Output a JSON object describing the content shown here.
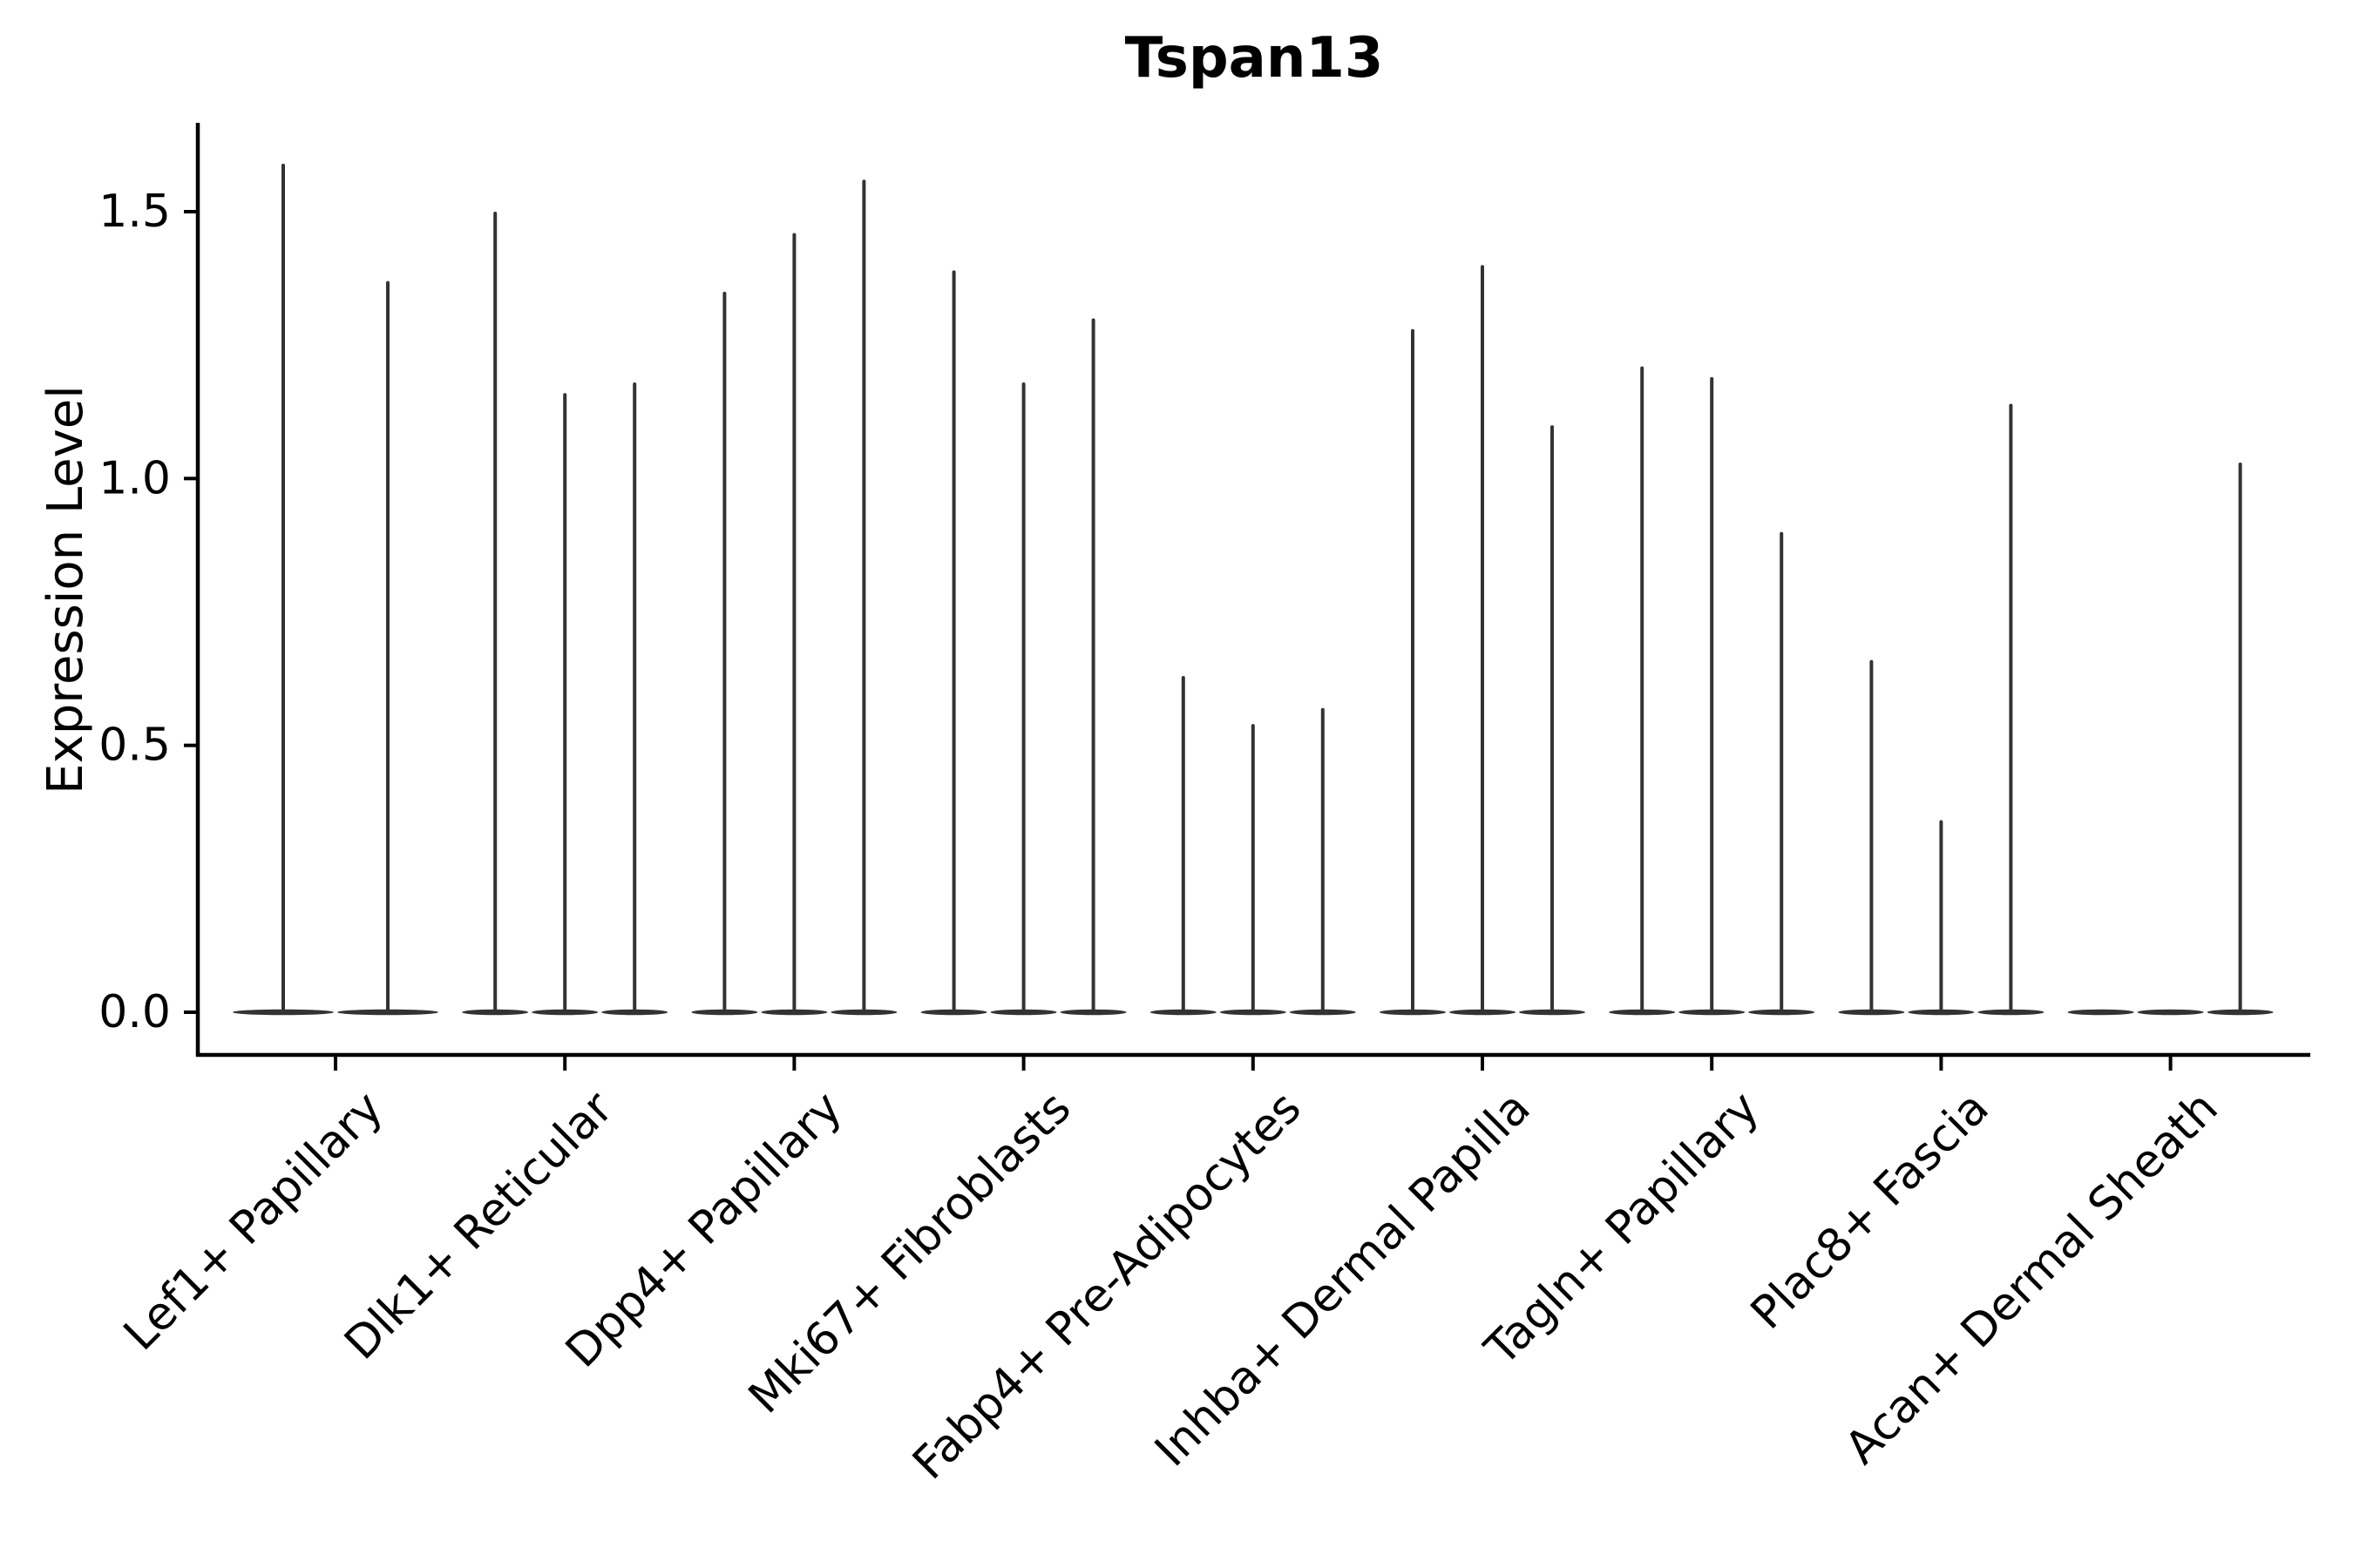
{
  "chart_data": {
    "type": "violin",
    "title": "Tspan13",
    "ylabel": "Expression Level",
    "xlabel": "",
    "ytick_labels": [
      "0.0",
      "0.5",
      "1.0",
      "1.5"
    ],
    "ytick_values": [
      0.0,
      0.5,
      1.0,
      1.5
    ],
    "ylim": [
      -0.08,
      1.67
    ],
    "grid": false,
    "legend": "none",
    "violin_style": "density collapsed at zero with a thin spike rising to the maximum expression value",
    "categories": [
      "Lef1+ Papillary",
      "Dlk1+ Reticular",
      "Dpp4+ Papillary",
      "Mki67+ Fibroblasts",
      "Fabp4+ Pre-Adipocytes",
      "Inhba+ Dermal Papilla",
      "Tagln+ Papillary",
      "Plac8+ Fascia",
      "Acan+ Dermal Sheath"
    ],
    "series": [
      {
        "category": "Lef1+ Papillary",
        "violin_max_values": [
          1.59,
          1.37
        ]
      },
      {
        "category": "Dlk1+ Reticular",
        "violin_max_values": [
          1.5,
          1.16,
          1.18
        ]
      },
      {
        "category": "Dpp4+ Papillary",
        "violin_max_values": [
          1.35,
          1.46,
          1.56
        ]
      },
      {
        "category": "Mki67+ Fibroblasts",
        "violin_max_values": [
          1.39,
          1.18,
          1.3
        ]
      },
      {
        "category": "Fabp4+ Pre-Adipocytes",
        "violin_max_values": [
          0.63,
          0.54,
          0.57
        ]
      },
      {
        "category": "Inhba+ Dermal Papilla",
        "violin_max_values": [
          1.28,
          1.4,
          1.1
        ]
      },
      {
        "category": "Tagln+ Papillary",
        "violin_max_values": [
          1.21,
          1.19,
          0.9
        ]
      },
      {
        "category": "Plac8+ Fascia",
        "violin_max_values": [
          0.66,
          0.36,
          1.14
        ]
      },
      {
        "category": "Acan+ Dermal Sheath",
        "violin_max_values": [
          0.0,
          0.0,
          1.03
        ]
      }
    ],
    "colors": {
      "violin": "#333333",
      "axis": "#000000",
      "text": "#000000",
      "background": "#ffffff"
    }
  }
}
